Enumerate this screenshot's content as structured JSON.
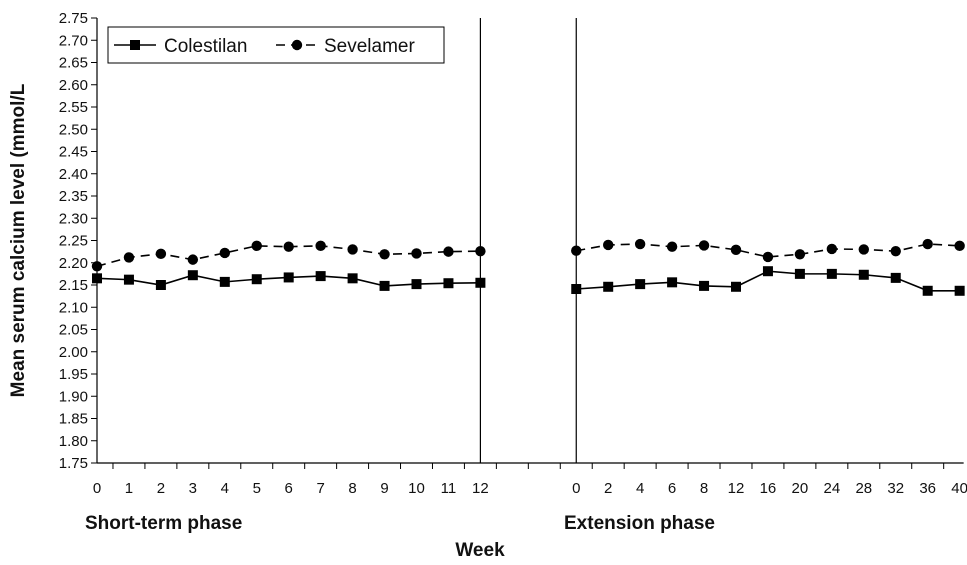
{
  "chart_data": {
    "type": "line",
    "xlabel": "Week",
    "ylabel": "Mean serum calcium level (mmol/L",
    "ylim": [
      1.75,
      2.75
    ],
    "y_ticks": [
      "1.75",
      "1.80",
      "1.85",
      "1.90",
      "1.95",
      "2.00",
      "2.05",
      "2.10",
      "2.15",
      "2.20",
      "2.25",
      "2.30",
      "2.35",
      "2.40",
      "2.45",
      "2.50",
      "2.55",
      "2.60",
      "2.65",
      "2.70",
      "2.75"
    ],
    "grid": false,
    "legend_position": "top-left",
    "categories": [
      "0",
      "1",
      "2",
      "3",
      "4",
      "5",
      "6",
      "7",
      "8",
      "9",
      "10",
      "11",
      "12",
      "",
      "",
      "0",
      "2",
      "4",
      "6",
      "8",
      "12",
      "16",
      "20",
      "24",
      "28",
      "32",
      "36",
      "40"
    ],
    "phases": [
      {
        "label": "Short-term phase"
      },
      {
        "label": "Extension phase"
      }
    ],
    "series": [
      {
        "name": "Colestilan",
        "marker": "square",
        "line_style": "solid",
        "color": "#000000",
        "values": [
          2.165,
          2.162,
          2.15,
          2.172,
          2.157,
          2.163,
          2.167,
          2.17,
          2.165,
          2.148,
          2.152,
          2.154,
          2.155,
          null,
          null,
          2.141,
          2.146,
          2.152,
          2.156,
          2.148,
          2.146,
          2.181,
          2.175,
          2.175,
          2.173,
          2.166,
          2.137,
          2.137
        ]
      },
      {
        "name": "Sevelamer",
        "marker": "circle",
        "line_style": "dashed",
        "color": "#000000",
        "values": [
          2.192,
          2.212,
          2.22,
          2.207,
          2.222,
          2.238,
          2.236,
          2.238,
          2.23,
          2.219,
          2.221,
          2.225,
          2.226,
          null,
          null,
          2.227,
          2.24,
          2.242,
          2.236,
          2.239,
          2.229,
          2.213,
          2.219,
          2.231,
          2.23,
          2.226,
          2.242,
          2.238
        ]
      }
    ]
  }
}
